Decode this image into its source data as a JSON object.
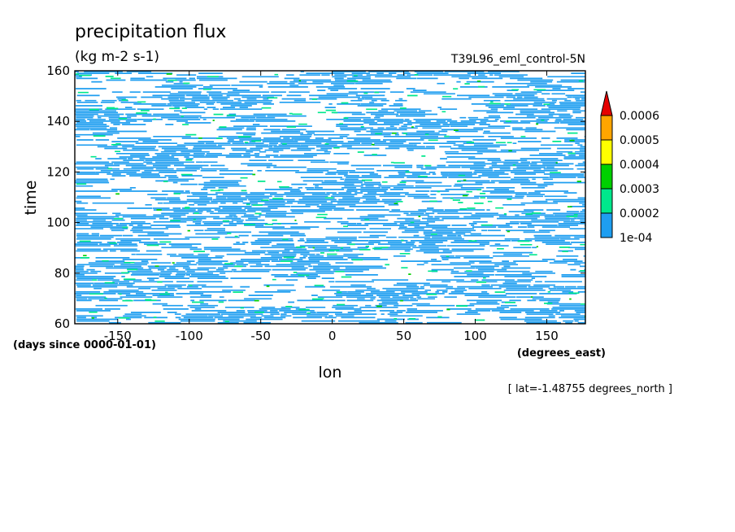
{
  "chart_data": {
    "type": "heatmap",
    "title": "precipitation flux",
    "units": "(kg m-2 s-1)",
    "dataset": "T39L96_eml_control-5N",
    "xlabel": "lon",
    "ylabel": "time",
    "x_units": "(degrees_east)",
    "y_units": "(days since 0000-01-01)",
    "footer": "[ lat=-1.48755 degrees_north ]",
    "xlim": [
      -180,
      177
    ],
    "ylim": [
      60,
      160
    ],
    "x_ticks": [
      -150,
      -100,
      -50,
      0,
      50,
      100,
      150
    ],
    "x_tick_labels": [
      "-150",
      "-100",
      "-50",
      "0",
      "50",
      "100",
      "150"
    ],
    "y_ticks": [
      60,
      80,
      100,
      120,
      140,
      160
    ],
    "y_tick_labels": [
      "60",
      "80",
      "100",
      "120",
      "140",
      "160"
    ],
    "colorbar": {
      "levels": [
        0.0001,
        0.0002,
        0.0003,
        0.0004,
        0.0005,
        0.0006
      ],
      "level_labels": [
        "1e-04",
        "0.0002",
        "0.0003",
        "0.0004",
        "0.0005",
        "0.0006"
      ],
      "colors": [
        "#ffffff",
        "#1e9ef0",
        "#00e88c",
        "#00d000",
        "#ffff00",
        "#ffa500",
        "#e60000"
      ],
      "extend": "max"
    }
  }
}
